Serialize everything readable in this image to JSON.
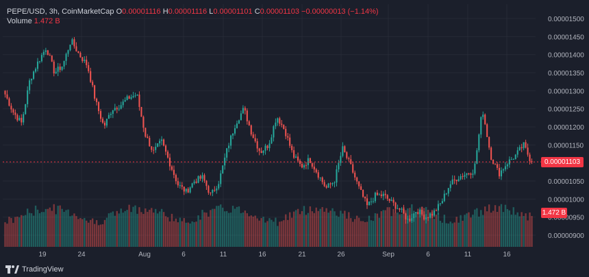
{
  "header": {
    "symbol": "PEPE/USD, 3h, CoinMarketCap",
    "o_label": "O",
    "o_value": "0.00001116",
    "h_label": "H",
    "h_value": "0.00001116",
    "l_label": "L",
    "l_value": "0.00001101",
    "c_label": "C",
    "c_value": "0.00001103",
    "change": "−0.00000013 (−1.14%)",
    "volume_label": "Volume",
    "volume_value": "1.472 B"
  },
  "price_tag": "0.00001103",
  "volume_tag": "1.472 B",
  "footer": {
    "logo_text": "TradingView"
  },
  "colors": {
    "up": "#26a69a",
    "down": "#ef5350",
    "background": "#1b1f2b",
    "grid": "#262a36",
    "axis_text": "#b2b5be"
  },
  "chart_data": {
    "type": "candlestick",
    "title": "PEPE/USD, 3h, CoinMarketCap",
    "x_ticks": [
      "19",
      "24",
      "Aug",
      "6",
      "11",
      "16",
      "21",
      "26",
      "Sep",
      "6",
      "11",
      "16"
    ],
    "y_ticks": [
      "0.00001500",
      "0.00001450",
      "0.00001400",
      "0.00001350",
      "0.00001300",
      "0.00001250",
      "0.00001200",
      "0.00001150",
      "0.00001100",
      "0.00001050",
      "0.00001000",
      "0.00000950",
      "0.00000900"
    ],
    "ylim": [
      8.7e-06,
      1.52e-05
    ],
    "last_close": 1.103e-05,
    "close_series": [
      1.29e-05,
      1.24e-05,
      1.21e-05,
      1.33e-05,
      1.38e-05,
      1.42e-05,
      1.35e-05,
      1.37e-05,
      1.44e-05,
      1.4e-05,
      1.37e-05,
      1.27e-05,
      1.2e-05,
      1.25e-05,
      1.26e-05,
      1.28e-05,
      1.29e-05,
      1.18e-05,
      1.13e-05,
      1.16e-05,
      1.1e-05,
      1.04e-05,
      1.02e-05,
      1.05e-05,
      1.06e-05,
      1.01e-05,
      1.05e-05,
      1.14e-05,
      1.21e-05,
      1.25e-05,
      1.18e-05,
      1.13e-05,
      1.15e-05,
      1.23e-05,
      1.19e-05,
      1.12e-05,
      1.09e-05,
      1.11e-05,
      1.07e-05,
      1.03e-05,
      1.05e-05,
      1.14e-05,
      1.09e-05,
      1.03e-05,
      9.8e-06,
      1.01e-05,
      1.01e-05,
      9.9e-06,
      9.7e-06,
      9.4e-06,
      9.7e-06,
      9.5e-06,
      9.6e-06,
      9.9e-06,
      1.04e-05,
      1.06e-05,
      1.07e-05,
      1.08e-05,
      1.25e-05,
      1.12e-05,
      1.07e-05,
      1.1e-05,
      1.12e-05,
      1.15e-05,
      1.1e-05
    ],
    "volume_last": "1.472 B"
  }
}
